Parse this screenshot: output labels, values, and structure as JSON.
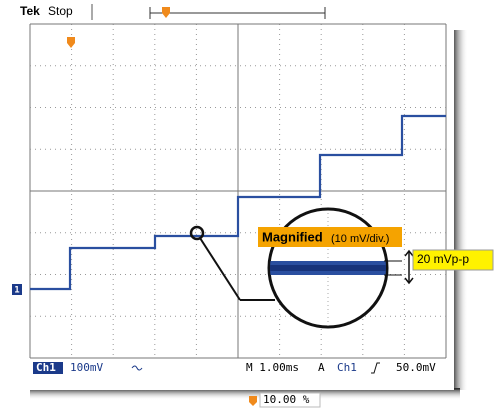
{
  "header": {
    "brand": "Tek",
    "status": "Stop"
  },
  "channel_marker": "1",
  "status_bar": {
    "channel": "Ch1",
    "scale": "100mV",
    "timebase": "M 1.00ms",
    "trigger_mode": "A",
    "trigger_source": "Ch1",
    "trigger_level": "50.0mV"
  },
  "trigger_position": "10.00 %",
  "callout": {
    "title": "Magnified",
    "subtitle": "(10 mV/div.)",
    "measurement": "20 mVp-p"
  }
}
